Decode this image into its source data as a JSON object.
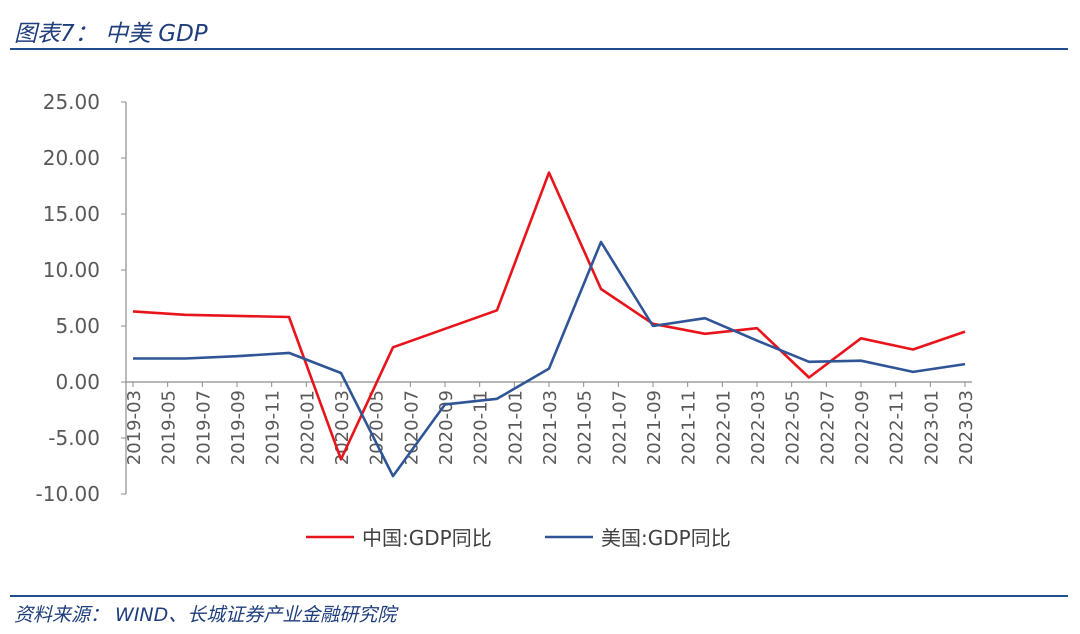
{
  "figure": {
    "title": "图表7：  中美 GDP",
    "source": "资料来源：  WIND、长城证券产业金融研究院"
  },
  "chart_data": {
    "type": "line",
    "title": "",
    "xlabel": "",
    "ylabel": "",
    "ylim": [
      -10,
      25
    ],
    "yticks": [
      "25.00",
      "20.00",
      "15.00",
      "10.00",
      "5.00",
      "0.00",
      "-5.00",
      "-10.00"
    ],
    "x_tick_labels": [
      "2019-03",
      "2019-05",
      "2019-07",
      "2019-09",
      "2019-11",
      "2020-01",
      "2020-03",
      "2020-05",
      "2020-07",
      "2020-09",
      "2020-11",
      "2021-01",
      "2021-03",
      "2021-05",
      "2021-07",
      "2021-09",
      "2021-11",
      "2022-01",
      "2022-03",
      "2022-05",
      "2022-07",
      "2022-09",
      "2022-11",
      "2023-01",
      "2023-03"
    ],
    "grid": false,
    "legend": "bottom",
    "series": [
      {
        "name": "中国:GDP同比",
        "color": "#e8141b",
        "points": [
          [
            "2019-03",
            6.3
          ],
          [
            "2019-06",
            6.0
          ],
          [
            "2019-12",
            5.8
          ],
          [
            "2020-03",
            -6.9
          ],
          [
            "2020-06",
            3.1
          ],
          [
            "2020-12",
            6.4
          ],
          [
            "2021-03",
            18.7
          ],
          [
            "2021-06",
            8.3
          ],
          [
            "2021-09",
            5.2
          ],
          [
            "2021-12",
            4.3
          ],
          [
            "2022-03",
            4.8
          ],
          [
            "2022-06",
            0.4
          ],
          [
            "2022-09",
            3.9
          ],
          [
            "2022-12",
            2.9
          ],
          [
            "2023-03",
            4.5
          ]
        ]
      },
      {
        "name": "美国:GDP同比",
        "color": "#2f5597",
        "points": [
          [
            "2019-03",
            2.1
          ],
          [
            "2019-06",
            2.1
          ],
          [
            "2019-09",
            2.3
          ],
          [
            "2019-12",
            2.6
          ],
          [
            "2020-03",
            0.8
          ],
          [
            "2020-06",
            -8.4
          ],
          [
            "2020-09",
            -2.0
          ],
          [
            "2020-12",
            -1.5
          ],
          [
            "2021-03",
            1.2
          ],
          [
            "2021-06",
            12.5
          ],
          [
            "2021-09",
            5.0
          ],
          [
            "2021-12",
            5.7
          ],
          [
            "2022-03",
            3.7
          ],
          [
            "2022-06",
            1.8
          ],
          [
            "2022-09",
            1.9
          ],
          [
            "2022-12",
            0.9
          ],
          [
            "2023-03",
            1.6
          ]
        ]
      }
    ]
  }
}
